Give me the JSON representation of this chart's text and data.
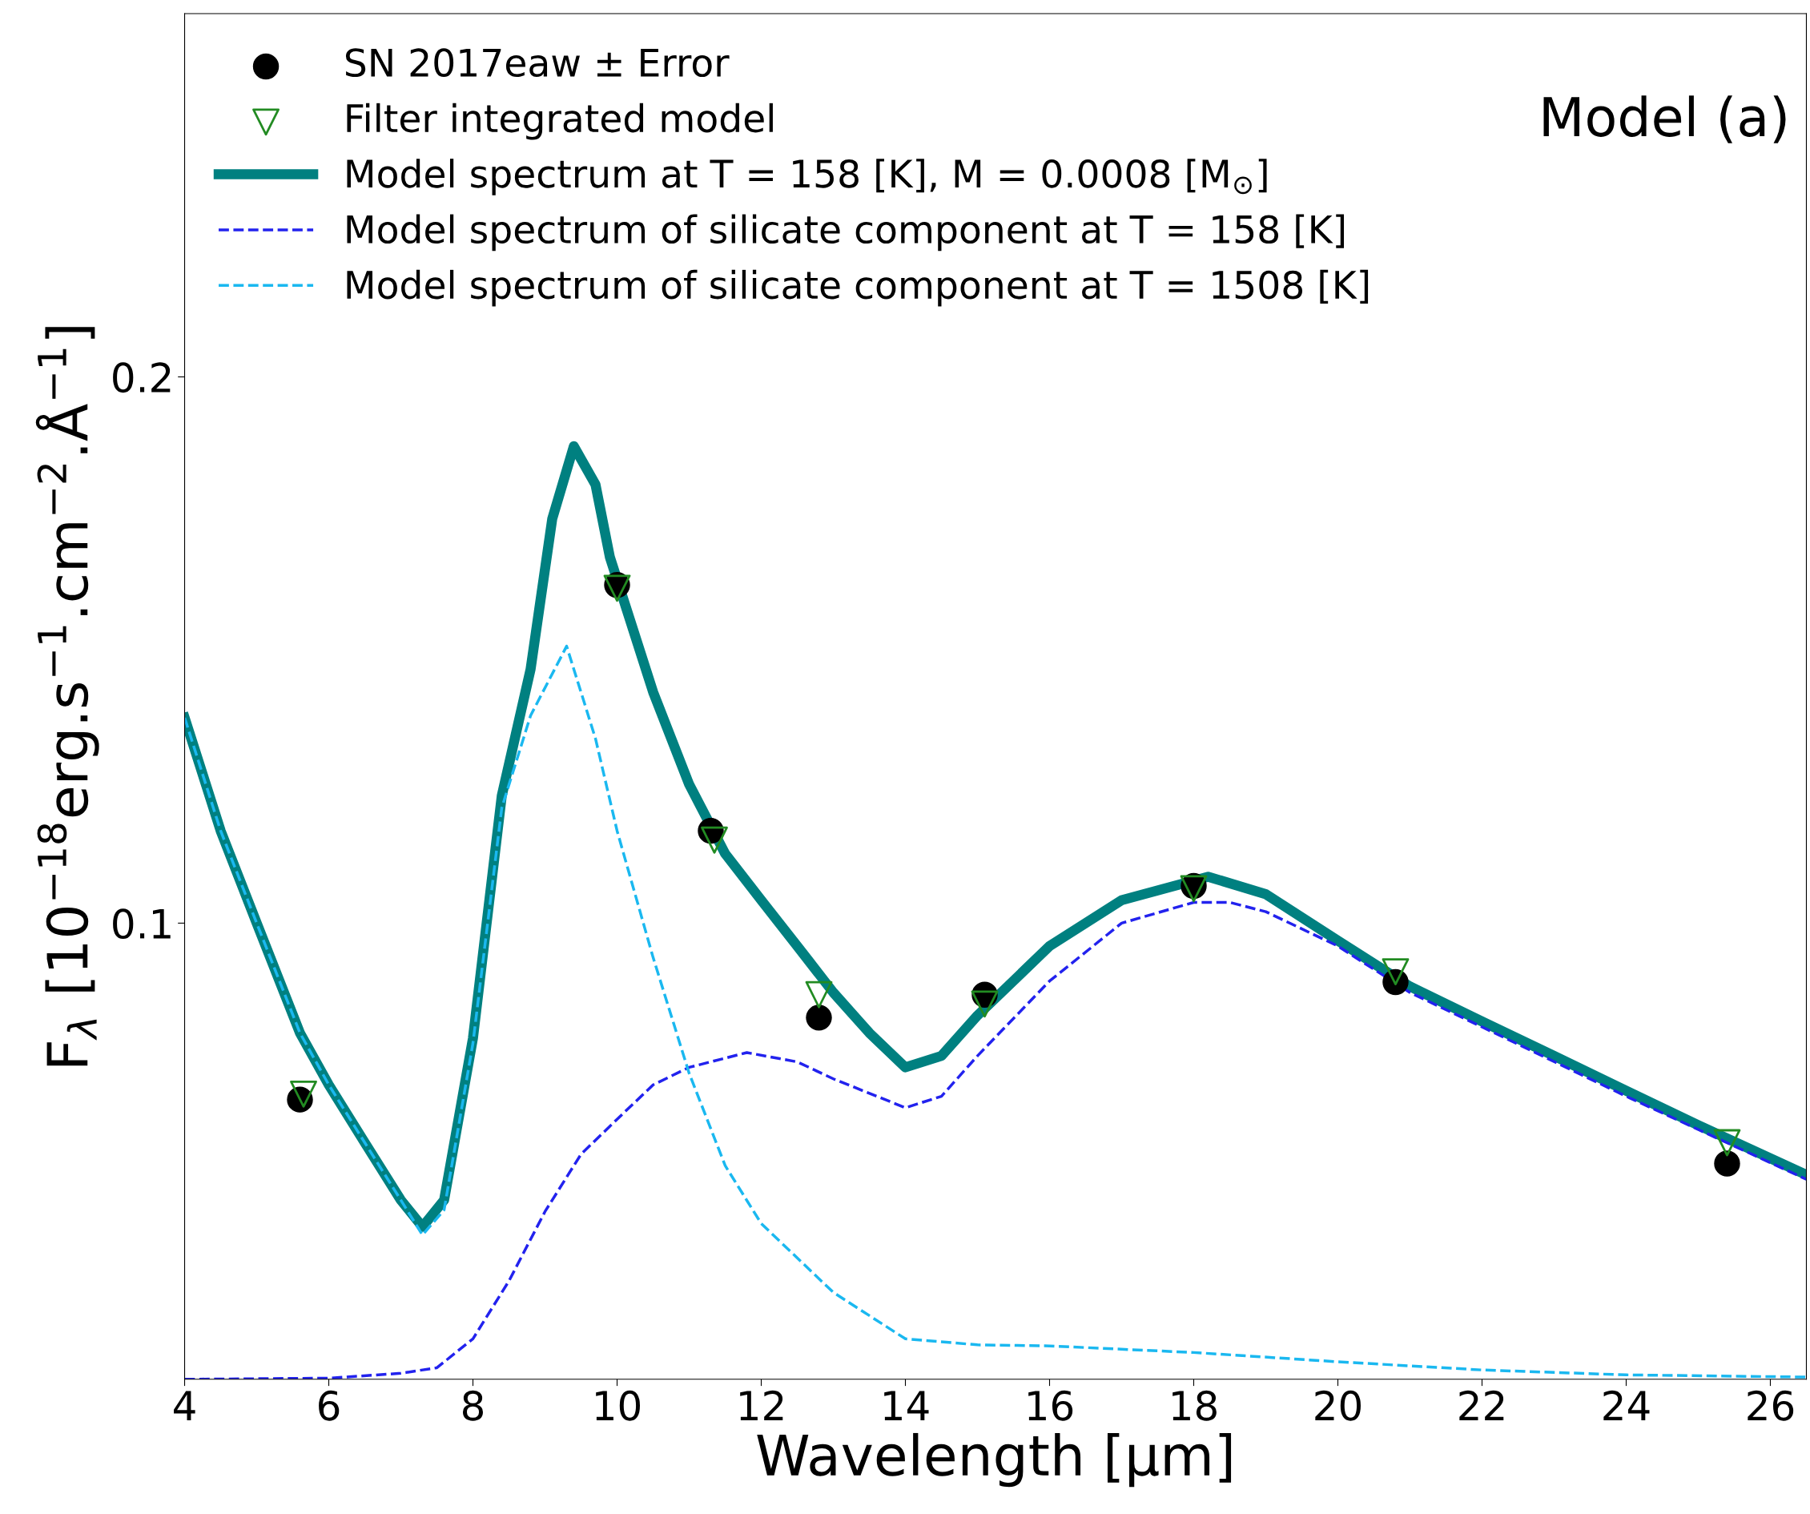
{
  "chart_data": {
    "type": "line",
    "xlabel": "Wavelength [μm]",
    "ylabel": "F$_{λ}$ [10$^{−18}$erg.s$^{−1}$.cm$^{−2}$.Å$^{−1}$]",
    "annotations": [
      "Model (a)"
    ],
    "xlim": [
      4,
      26.5
    ],
    "xticks": [
      4,
      6,
      8,
      10,
      12,
      14,
      16,
      18,
      20,
      22,
      24,
      26
    ],
    "ylim": [
      0.0165,
      0.2665
    ],
    "yticks": [
      0.1,
      0.2
    ],
    "grid": false,
    "legend": "top left",
    "series": [
      {
        "name": "SN 2017eaw ± Error",
        "type": "scatter",
        "marker": "circle",
        "color": "#000000",
        "x": [
          5.6,
          10,
          11.3,
          12.8,
          15.1,
          18,
          20.8,
          25.4
        ],
        "values": [
          0.0677,
          0.1619,
          0.1169,
          0.0827,
          0.0869,
          0.1068,
          0.0892,
          0.056
        ]
      },
      {
        "name": "Filter integrated model",
        "type": "scatter",
        "marker": "triangle",
        "color": "#228b22",
        "x": [
          5.65,
          10,
          11.35,
          12.8,
          15.1,
          18,
          20.8,
          25.4
        ],
        "values": [
          0.0687,
          0.1613,
          0.1152,
          0.0869,
          0.0852,
          0.1063,
          0.0911,
          0.0598
        ]
      },
      {
        "name": "Model spectrum at T = 158 [K], M = 0.0008 [M$_{⊙}$]",
        "line_style": "solid",
        "color": "#008080",
        "x": [
          4,
          4.5,
          5,
          5.6,
          6,
          6.5,
          7,
          7.3,
          7.6,
          8,
          8.4,
          8.8,
          9.1,
          9.4,
          9.7,
          9.9,
          10.5,
          11,
          11.5,
          12,
          12.5,
          13,
          13.5,
          14,
          14.5,
          15,
          16,
          17,
          18.2,
          19,
          20,
          21,
          22,
          23,
          24,
          25,
          26.5
        ],
        "values": [
          0.1376,
          0.1169,
          0.1,
          0.0799,
          0.0704,
          0.0598,
          0.0493,
          0.0444,
          0.0493,
          0.0789,
          0.1233,
          0.1465,
          0.174,
          0.1873,
          0.1803,
          0.167,
          0.1423,
          0.1254,
          0.1127,
          0.1042,
          0.0958,
          0.0873,
          0.0799,
          0.0736,
          0.0757,
          0.0831,
          0.0958,
          0.1042,
          0.1085,
          0.1053,
          0.0968,
          0.0884,
          0.082,
          0.0757,
          0.0693,
          0.063,
          0.0539
        ]
      },
      {
        "name": "Model spectrum of silicate component at T = 158 [K]",
        "line_style": "dashed",
        "color": "#2222ee",
        "x": [
          4,
          6,
          7,
          7.5,
          8,
          8.5,
          9,
          9.5,
          10,
          10.5,
          11,
          11.8,
          12.5,
          13,
          14,
          14.5,
          15,
          16,
          17,
          18,
          18.5,
          19,
          20,
          21,
          22,
          24,
          26.5
        ],
        "values": [
          0.0165,
          0.0167,
          0.0176,
          0.0186,
          0.0239,
          0.0345,
          0.0472,
          0.0577,
          0.0641,
          0.0704,
          0.0736,
          0.0763,
          0.0746,
          0.0715,
          0.0662,
          0.0683,
          0.0757,
          0.0894,
          0.1,
          0.1038,
          0.1038,
          0.1021,
          0.0958,
          0.0873,
          0.081,
          0.0683,
          0.0531
        ]
      },
      {
        "name": "Model spectrum of silicate component at T = 1508 [K]",
        "line_style": "dashed",
        "color": "#1ab8f0",
        "x": [
          4,
          4.5,
          5,
          5.6,
          6,
          6.5,
          7,
          7.3,
          7.6,
          8,
          8.4,
          8.8,
          9.3,
          9.7,
          10,
          10.5,
          11,
          11.5,
          12,
          13,
          14,
          15,
          16,
          18,
          20,
          22,
          24,
          26.5
        ],
        "values": [
          0.1376,
          0.1169,
          0.1,
          0.0799,
          0.0704,
          0.0598,
          0.0493,
          0.0429,
          0.0475,
          0.078,
          0.1211,
          0.138,
          0.1507,
          0.1338,
          0.1169,
          0.0937,
          0.0725,
          0.0556,
          0.045,
          0.0324,
          0.0239,
          0.0228,
          0.0226,
          0.0214,
          0.0197,
          0.0182,
          0.0173,
          0.0169
        ]
      }
    ]
  }
}
